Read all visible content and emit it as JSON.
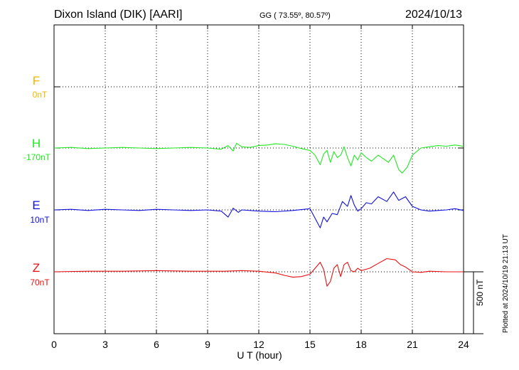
{
  "header": {
    "station": "Dixon Island (DIK)  [AARI]",
    "coords": "GG ( 73.55º,  80.57º)",
    "date": "2024/10/13"
  },
  "x_axis_label": "U T (hour)",
  "scale_label": "500 nT",
  "plotted_note": "Plotted at 2024/10/19 21:13 UT",
  "colors": {
    "F": "#f5b400",
    "H": "#22e822",
    "E": "#1010d8",
    "Z": "#e81010"
  },
  "chart_data": {
    "type": "line",
    "xlim": [
      0,
      24
    ],
    "x_ticks": [
      "0",
      "3",
      "6",
      "9",
      "12",
      "15",
      "18",
      "21",
      "24"
    ],
    "grid": true,
    "series": [
      {
        "name": "F",
        "offset_label": "0nT",
        "x": [],
        "y": []
      },
      {
        "name": "H",
        "offset_label": "-170nT",
        "x": [
          0,
          1,
          2,
          3,
          4,
          5,
          6,
          7,
          8,
          9,
          9.8,
          10.2,
          10.5,
          10.7,
          11,
          11.5,
          12,
          12.5,
          13,
          13.5,
          14,
          14.5,
          15,
          15.3,
          15.6,
          15.8,
          16,
          16.2,
          16.4,
          16.6,
          16.8,
          17,
          17.2,
          17.4,
          17.6,
          17.8,
          18,
          18.3,
          18.6,
          19,
          19.3,
          19.6,
          19.9,
          20.2,
          20.4,
          20.7,
          21,
          21.5,
          22,
          22.5,
          23,
          23.5,
          24
        ],
        "y": [
          0,
          5,
          -5,
          0,
          5,
          0,
          -5,
          0,
          5,
          0,
          -10,
          20,
          -25,
          40,
          10,
          5,
          20,
          25,
          35,
          30,
          15,
          -5,
          -20,
          -60,
          -140,
          -50,
          -20,
          -120,
          -30,
          -80,
          -60,
          10,
          -80,
          -150,
          -60,
          -100,
          -40,
          -80,
          -110,
          -60,
          -90,
          -120,
          -60,
          -180,
          -210,
          -160,
          -60,
          0,
          10,
          20,
          15,
          25,
          15
        ]
      },
      {
        "name": "E",
        "offset_label": "10nT",
        "x": [
          0,
          1,
          2,
          3,
          4,
          5,
          6,
          7,
          8,
          9,
          9.8,
          10.2,
          10.5,
          10.8,
          11,
          12,
          13,
          14,
          15,
          15.3,
          15.6,
          15.8,
          16,
          16.3,
          16.6,
          16.9,
          17.2,
          17.4,
          17.6,
          17.8,
          18,
          18.3,
          18.6,
          19,
          19.5,
          19.9,
          20.2,
          20.6,
          21,
          21.5,
          22,
          22.5,
          23,
          23.5,
          24
        ],
        "y": [
          0,
          5,
          -5,
          5,
          0,
          -5,
          5,
          0,
          -5,
          0,
          -10,
          -60,
          15,
          -20,
          0,
          -10,
          -15,
          -5,
          10,
          -70,
          -150,
          -60,
          -100,
          -30,
          -40,
          70,
          30,
          120,
          40,
          -10,
          10,
          60,
          50,
          110,
          70,
          150,
          80,
          110,
          30,
          0,
          -10,
          -5,
          0,
          10,
          -5
        ]
      },
      {
        "name": "Z",
        "offset_label": "70nT",
        "x": [
          0,
          2,
          4,
          6,
          8,
          10,
          11,
          12,
          13,
          13.5,
          14,
          14.5,
          15,
          15.3,
          15.6,
          15.8,
          16,
          16.2,
          16.4,
          16.6,
          16.8,
          17,
          17.2,
          17.4,
          17.6,
          17.8,
          18,
          18.5,
          19,
          19.5,
          20,
          20.3,
          20.6,
          21,
          21.5,
          22,
          23,
          24
        ],
        "y": [
          0,
          5,
          5,
          10,
          5,
          5,
          10,
          5,
          -10,
          -30,
          -45,
          -40,
          -20,
          30,
          80,
          20,
          -120,
          -80,
          30,
          60,
          -40,
          60,
          80,
          10,
          0,
          30,
          10,
          30,
          70,
          110,
          100,
          60,
          40,
          0,
          -5,
          5,
          0,
          0
        ]
      }
    ]
  }
}
